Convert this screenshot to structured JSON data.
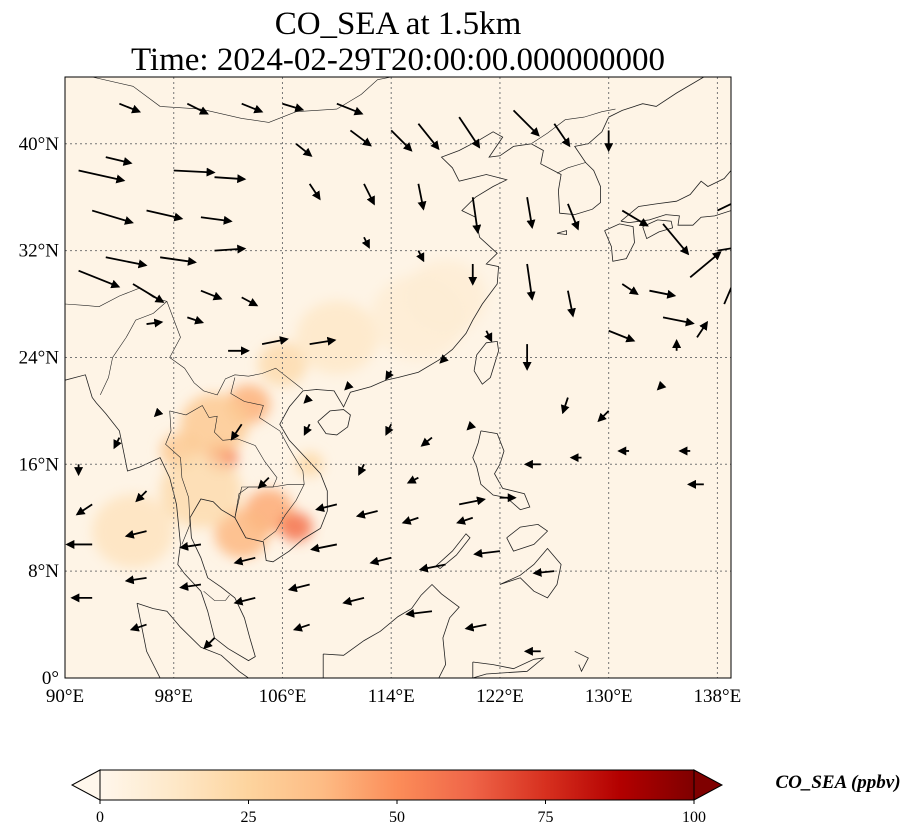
{
  "title": {
    "line1": "CO_SEA at 1.5km",
    "line2": "Time: 2024-02-29T20:00:00.000000000"
  },
  "map": {
    "lon_range": [
      90,
      139
    ],
    "lat_range": [
      0,
      45
    ],
    "x_ticks": [
      {
        "value": 90,
        "label": "90°E"
      },
      {
        "value": 98,
        "label": "98°E"
      },
      {
        "value": 106,
        "label": "106°E"
      },
      {
        "value": 114,
        "label": "114°E"
      },
      {
        "value": 122,
        "label": "122°E"
      },
      {
        "value": 130,
        "label": "130°E"
      },
      {
        "value": 138,
        "label": "138°E"
      }
    ],
    "y_ticks": [
      {
        "value": 0,
        "label": "0°"
      },
      {
        "value": 8,
        "label": "8°N"
      },
      {
        "value": 16,
        "label": "16°N"
      },
      {
        "value": 24,
        "label": "24°N"
      },
      {
        "value": 32,
        "label": "32°N"
      },
      {
        "value": 40,
        "label": "40°N"
      }
    ],
    "gridlines": true,
    "colors": {
      "background": "#fef4e6",
      "coast": "#222222",
      "grid": "#777777",
      "arrow": "#000000"
    }
  },
  "colorbar": {
    "label": "CO_SEA (ppbv)",
    "min": 0,
    "max": 100,
    "extend": "both",
    "ticks": [
      {
        "value": 0,
        "label": "0"
      },
      {
        "value": 25,
        "label": "25"
      },
      {
        "value": 50,
        "label": "50"
      },
      {
        "value": 75,
        "label": "75"
      },
      {
        "value": 100,
        "label": "100"
      }
    ],
    "colormap": [
      "#fff7ec",
      "#fee8c8",
      "#fdd49e",
      "#fdbb84",
      "#fc8d59",
      "#ef6548",
      "#d7301f",
      "#b30000",
      "#7f0000"
    ]
  },
  "co_hotspots": [
    {
      "lon": 101.5,
      "lat": 16.5,
      "value": 55,
      "radius_deg": 1.2
    },
    {
      "lon": 103.5,
      "lat": 20.5,
      "value": 40,
      "radius_deg": 1.6
    },
    {
      "lon": 105.0,
      "lat": 12.5,
      "value": 42,
      "radius_deg": 1.8
    },
    {
      "lon": 107.0,
      "lat": 11.3,
      "value": 58,
      "radius_deg": 1.2
    },
    {
      "lon": 103.0,
      "lat": 10.8,
      "value": 38,
      "radius_deg": 2.0
    },
    {
      "lon": 101.0,
      "lat": 19.0,
      "value": 30,
      "radius_deg": 2.5
    },
    {
      "lon": 98.5,
      "lat": 17.0,
      "value": 30,
      "radius_deg": 1.5
    },
    {
      "lon": 100.0,
      "lat": 14.0,
      "value": 20,
      "radius_deg": 3.0
    },
    {
      "lon": 95.0,
      "lat": 11.0,
      "value": 15,
      "radius_deg": 3.0
    },
    {
      "lon": 108.0,
      "lat": 16.0,
      "value": 22,
      "radius_deg": 1.0
    },
    {
      "lon": 106.0,
      "lat": 23.5,
      "value": 20,
      "radius_deg": 1.8
    },
    {
      "lon": 110.0,
      "lat": 25.5,
      "value": 12,
      "radius_deg": 3.0
    },
    {
      "lon": 116.0,
      "lat": 27.0,
      "value": 8,
      "radius_deg": 3.5
    },
    {
      "lon": 118.0,
      "lat": 28.5,
      "value": 8,
      "radius_deg": 3.0
    }
  ],
  "winds": [
    {
      "lon": 91,
      "lat": 38,
      "u": 4.5,
      "v": -1.0
    },
    {
      "lon": 93,
      "lat": 39,
      "u": 2.5,
      "v": -0.6
    },
    {
      "lon": 98,
      "lat": 38,
      "u": 4.0,
      "v": -0.2
    },
    {
      "lon": 101,
      "lat": 37.5,
      "u": 3.0,
      "v": -0.2
    },
    {
      "lon": 92,
      "lat": 35,
      "u": 4.0,
      "v": -1.2
    },
    {
      "lon": 96,
      "lat": 35,
      "u": 3.5,
      "v": -0.8
    },
    {
      "lon": 100,
      "lat": 34.5,
      "u": 3.0,
      "v": -0.4
    },
    {
      "lon": 93,
      "lat": 31.5,
      "u": 4.0,
      "v": -0.8
    },
    {
      "lon": 97,
      "lat": 31.5,
      "u": 3.5,
      "v": -0.5
    },
    {
      "lon": 101,
      "lat": 32,
      "u": 3.0,
      "v": 0.2
    },
    {
      "lon": 91,
      "lat": 30.5,
      "u": 4.0,
      "v": -1.6
    },
    {
      "lon": 95,
      "lat": 29.5,
      "u": 3.0,
      "v": -1.8
    },
    {
      "lon": 100,
      "lat": 29,
      "u": 2.0,
      "v": -0.8
    },
    {
      "lon": 102,
      "lat": 24.5,
      "u": 2.0,
      "v": 0.0
    },
    {
      "lon": 104.5,
      "lat": 25,
      "u": 2.5,
      "v": 0.5
    },
    {
      "lon": 108,
      "lat": 25,
      "u": 2.5,
      "v": 0.4
    },
    {
      "lon": 96,
      "lat": 26.5,
      "u": 1.5,
      "v": 0.2
    },
    {
      "lon": 99,
      "lat": 27,
      "u": 1.5,
      "v": -0.5
    },
    {
      "lon": 103,
      "lat": 28.5,
      "u": 1.5,
      "v": -0.8
    },
    {
      "lon": 94,
      "lat": 43,
      "u": 2.0,
      "v": -0.8
    },
    {
      "lon": 99,
      "lat": 43,
      "u": 2.0,
      "v": -1.0
    },
    {
      "lon": 103,
      "lat": 43,
      "u": 2.0,
      "v": -0.8
    },
    {
      "lon": 106,
      "lat": 43,
      "u": 2.0,
      "v": -0.6
    },
    {
      "lon": 110,
      "lat": 43,
      "u": 2.5,
      "v": -1.0
    },
    {
      "lon": 107,
      "lat": 40,
      "u": 1.5,
      "v": -1.2
    },
    {
      "lon": 111,
      "lat": 41,
      "u": 2.0,
      "v": -1.5
    },
    {
      "lon": 114,
      "lat": 41,
      "u": 2.0,
      "v": -2.0
    },
    {
      "lon": 116,
      "lat": 41.5,
      "u": 2.0,
      "v": -2.5
    },
    {
      "lon": 119,
      "lat": 42,
      "u": 2.0,
      "v": -3.0
    },
    {
      "lon": 123,
      "lat": 42.5,
      "u": 2.5,
      "v": -2.5
    },
    {
      "lon": 126,
      "lat": 41.5,
      "u": 1.5,
      "v": -2.2
    },
    {
      "lon": 130,
      "lat": 41,
      "u": 0.0,
      "v": -2.0
    },
    {
      "lon": 108,
      "lat": 37,
      "u": 1.0,
      "v": -1.5
    },
    {
      "lon": 112,
      "lat": 37,
      "u": 1.0,
      "v": -2.0
    },
    {
      "lon": 116,
      "lat": 37,
      "u": 0.5,
      "v": -2.5
    },
    {
      "lon": 120,
      "lat": 36,
      "u": 0.5,
      "v": -3.5
    },
    {
      "lon": 124,
      "lat": 36,
      "u": 0.5,
      "v": -3.0
    },
    {
      "lon": 127,
      "lat": 35.5,
      "u": 1.0,
      "v": -2.5
    },
    {
      "lon": 131,
      "lat": 35,
      "u": 2.5,
      "v": -1.5
    },
    {
      "lon": 134,
      "lat": 34,
      "u": 2.5,
      "v": -3.0
    },
    {
      "lon": 138,
      "lat": 35,
      "u": 2.5,
      "v": 1.2
    },
    {
      "lon": 138,
      "lat": 32,
      "u": 3.0,
      "v": 0.5
    },
    {
      "lon": 136,
      "lat": 30,
      "u": 3.0,
      "v": 2.5
    },
    {
      "lon": 138.5,
      "lat": 28,
      "u": 1.5,
      "v": 3.5
    },
    {
      "lon": 134,
      "lat": 27,
      "u": 3.0,
      "v": -0.6
    },
    {
      "lon": 133,
      "lat": 29,
      "u": 2.5,
      "v": -0.5
    },
    {
      "lon": 135,
      "lat": 24.5,
      "u": 0.0,
      "v": 1.0
    },
    {
      "lon": 136.5,
      "lat": 25.5,
      "u": 1.0,
      "v": 1.5
    },
    {
      "lon": 130,
      "lat": 26,
      "u": 2.5,
      "v": -1.0
    },
    {
      "lon": 131,
      "lat": 29.5,
      "u": 1.5,
      "v": -1.0
    },
    {
      "lon": 127,
      "lat": 29,
      "u": 0.5,
      "v": -2.5
    },
    {
      "lon": 124,
      "lat": 31,
      "u": 0.5,
      "v": -3.5
    },
    {
      "lon": 120,
      "lat": 31,
      "u": 0.0,
      "v": -2.0
    },
    {
      "lon": 116,
      "lat": 32,
      "u": 0.5,
      "v": -1.0
    },
    {
      "lon": 112,
      "lat": 33,
      "u": 0.5,
      "v": -1.0
    },
    {
      "lon": 124,
      "lat": 25,
      "u": 0.0,
      "v": -2.5
    },
    {
      "lon": 121,
      "lat": 26,
      "u": 0.5,
      "v": -1.0
    },
    {
      "lon": 118,
      "lat": 24,
      "u": -0.5,
      "v": -0.5
    },
    {
      "lon": 114,
      "lat": 23,
      "u": -0.5,
      "v": -0.8
    },
    {
      "lon": 111,
      "lat": 22,
      "u": -0.5,
      "v": -0.5
    },
    {
      "lon": 108,
      "lat": 21,
      "u": -0.5,
      "v": -0.5
    },
    {
      "lon": 114,
      "lat": 19,
      "u": -0.5,
      "v": -1.0
    },
    {
      "lon": 117,
      "lat": 18,
      "u": -1.0,
      "v": -0.8
    },
    {
      "lon": 120,
      "lat": 19,
      "u": -0.5,
      "v": -0.5
    },
    {
      "lon": 127,
      "lat": 21,
      "u": -0.5,
      "v": -1.5
    },
    {
      "lon": 130,
      "lat": 20,
      "u": -1.0,
      "v": -1.0
    },
    {
      "lon": 134,
      "lat": 22,
      "u": -0.5,
      "v": -0.5
    },
    {
      "lon": 128,
      "lat": 16.5,
      "u": -1.0,
      "v": 0.0
    },
    {
      "lon": 131.5,
      "lat": 17,
      "u": -1.0,
      "v": 0.0
    },
    {
      "lon": 136,
      "lat": 17,
      "u": -1.0,
      "v": 0.0
    },
    {
      "lon": 125,
      "lat": 16,
      "u": -1.5,
      "v": 0.0
    },
    {
      "lon": 137,
      "lat": 14.5,
      "u": -1.5,
      "v": 0.0
    },
    {
      "lon": 112,
      "lat": 16,
      "u": -0.5,
      "v": -1.0
    },
    {
      "lon": 116,
      "lat": 15,
      "u": -1.0,
      "v": -0.5
    },
    {
      "lon": 110,
      "lat": 13,
      "u": -2.0,
      "v": -0.5
    },
    {
      "lon": 113,
      "lat": 12.5,
      "u": -2.0,
      "v": -0.5
    },
    {
      "lon": 116,
      "lat": 12,
      "u": -1.5,
      "v": -0.5
    },
    {
      "lon": 120,
      "lat": 12,
      "u": -1.5,
      "v": -0.5
    },
    {
      "lon": 110,
      "lat": 10,
      "u": -2.5,
      "v": -0.5
    },
    {
      "lon": 114,
      "lat": 9,
      "u": -2.0,
      "v": -0.5
    },
    {
      "lon": 118,
      "lat": 8.5,
      "u": -2.5,
      "v": -0.5
    },
    {
      "lon": 122,
      "lat": 9.5,
      "u": -2.5,
      "v": -0.3
    },
    {
      "lon": 126,
      "lat": 8,
      "u": -2.0,
      "v": -0.2
    },
    {
      "lon": 108,
      "lat": 7,
      "u": -2.0,
      "v": -0.5
    },
    {
      "lon": 112,
      "lat": 6,
      "u": -2.0,
      "v": -0.5
    },
    {
      "lon": 117,
      "lat": 5,
      "u": -2.5,
      "v": -0.3
    },
    {
      "lon": 121,
      "lat": 4,
      "u": -2.0,
      "v": -0.4
    },
    {
      "lon": 125,
      "lat": 2,
      "u": -1.5,
      "v": 0.0
    },
    {
      "lon": 108,
      "lat": 4,
      "u": -1.5,
      "v": -0.5
    },
    {
      "lon": 104,
      "lat": 6,
      "u": -2.0,
      "v": -0.5
    },
    {
      "lon": 100,
      "lat": 7,
      "u": -2.0,
      "v": -0.3
    },
    {
      "lon": 96,
      "lat": 7.5,
      "u": -2.0,
      "v": -0.3
    },
    {
      "lon": 92,
      "lat": 6,
      "u": -2.0,
      "v": 0.0
    },
    {
      "lon": 96,
      "lat": 4,
      "u": -1.5,
      "v": -0.5
    },
    {
      "lon": 101,
      "lat": 3,
      "u": -1.0,
      "v": -1.0
    },
    {
      "lon": 92,
      "lat": 10,
      "u": -2.5,
      "v": 0.0
    },
    {
      "lon": 96,
      "lat": 11,
      "u": -2.0,
      "v": -0.5
    },
    {
      "lon": 100,
      "lat": 10,
      "u": -2.0,
      "v": -0.3
    },
    {
      "lon": 104,
      "lat": 9,
      "u": -2.0,
      "v": -0.5
    },
    {
      "lon": 96,
      "lat": 14,
      "u": -1.0,
      "v": -1.0
    },
    {
      "lon": 92,
      "lat": 13,
      "u": -1.5,
      "v": -1.0
    },
    {
      "lon": 91,
      "lat": 16,
      "u": 0.0,
      "v": -1.0
    },
    {
      "lon": 94,
      "lat": 18,
      "u": -0.5,
      "v": -1.0
    },
    {
      "lon": 97,
      "lat": 20,
      "u": -0.5,
      "v": -0.5
    },
    {
      "lon": 103,
      "lat": 19,
      "u": -1.0,
      "v": -1.5
    },
    {
      "lon": 105,
      "lat": 15,
      "u": -1.0,
      "v": -1.0
    },
    {
      "lon": 108,
      "lat": 19,
      "u": -0.5,
      "v": -1.0
    },
    {
      "lon": 119,
      "lat": 13,
      "u": 2.5,
      "v": 0.5
    },
    {
      "lon": 122,
      "lat": 13.5,
      "u": 1.5,
      "v": 0.0
    }
  ]
}
